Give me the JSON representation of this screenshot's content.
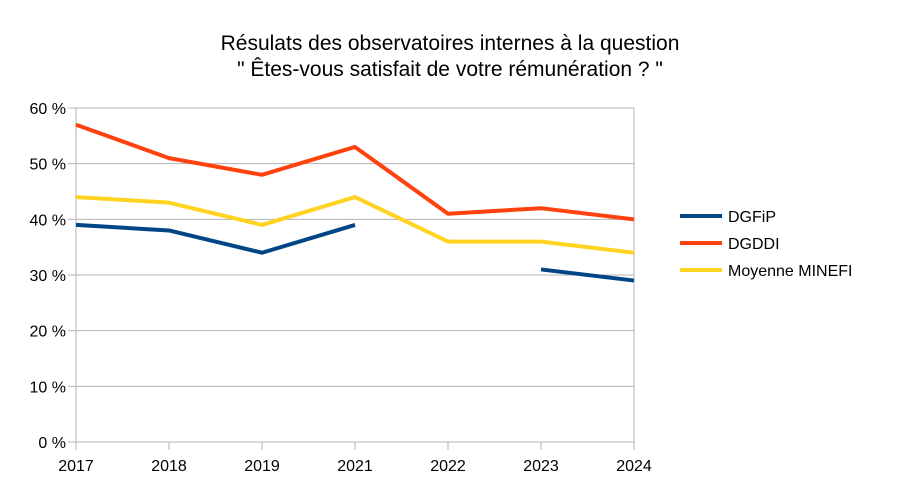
{
  "chart_data": {
    "type": "line",
    "title": [
      "Résulats des observatoires internes à la question",
      "\" Êtes-vous satisfait de votre rémunération ? \""
    ],
    "categories": [
      "2017",
      "2018",
      "2019",
      "2021",
      "2022",
      "2023",
      "2024"
    ],
    "ylim": [
      0,
      60
    ],
    "yticks": [
      0,
      10,
      20,
      30,
      40,
      50,
      60
    ],
    "ytick_labels": [
      "0 %",
      "10 %",
      "20 %",
      "30 %",
      "40 %",
      "50 %",
      "60 %"
    ],
    "grid": true,
    "legend": "right",
    "series": [
      {
        "name": "DGFiP",
        "color": "#004586",
        "values": [
          39,
          38,
          34,
          39,
          null,
          31,
          29
        ]
      },
      {
        "name": "DGDDI",
        "color": "#ff420e",
        "values": [
          57,
          51,
          48,
          53,
          41,
          42,
          40
        ]
      },
      {
        "name": "Moyenne MINEFI",
        "color": "#ffd320",
        "values": [
          44,
          43,
          39,
          44,
          36,
          36,
          34
        ]
      }
    ]
  }
}
